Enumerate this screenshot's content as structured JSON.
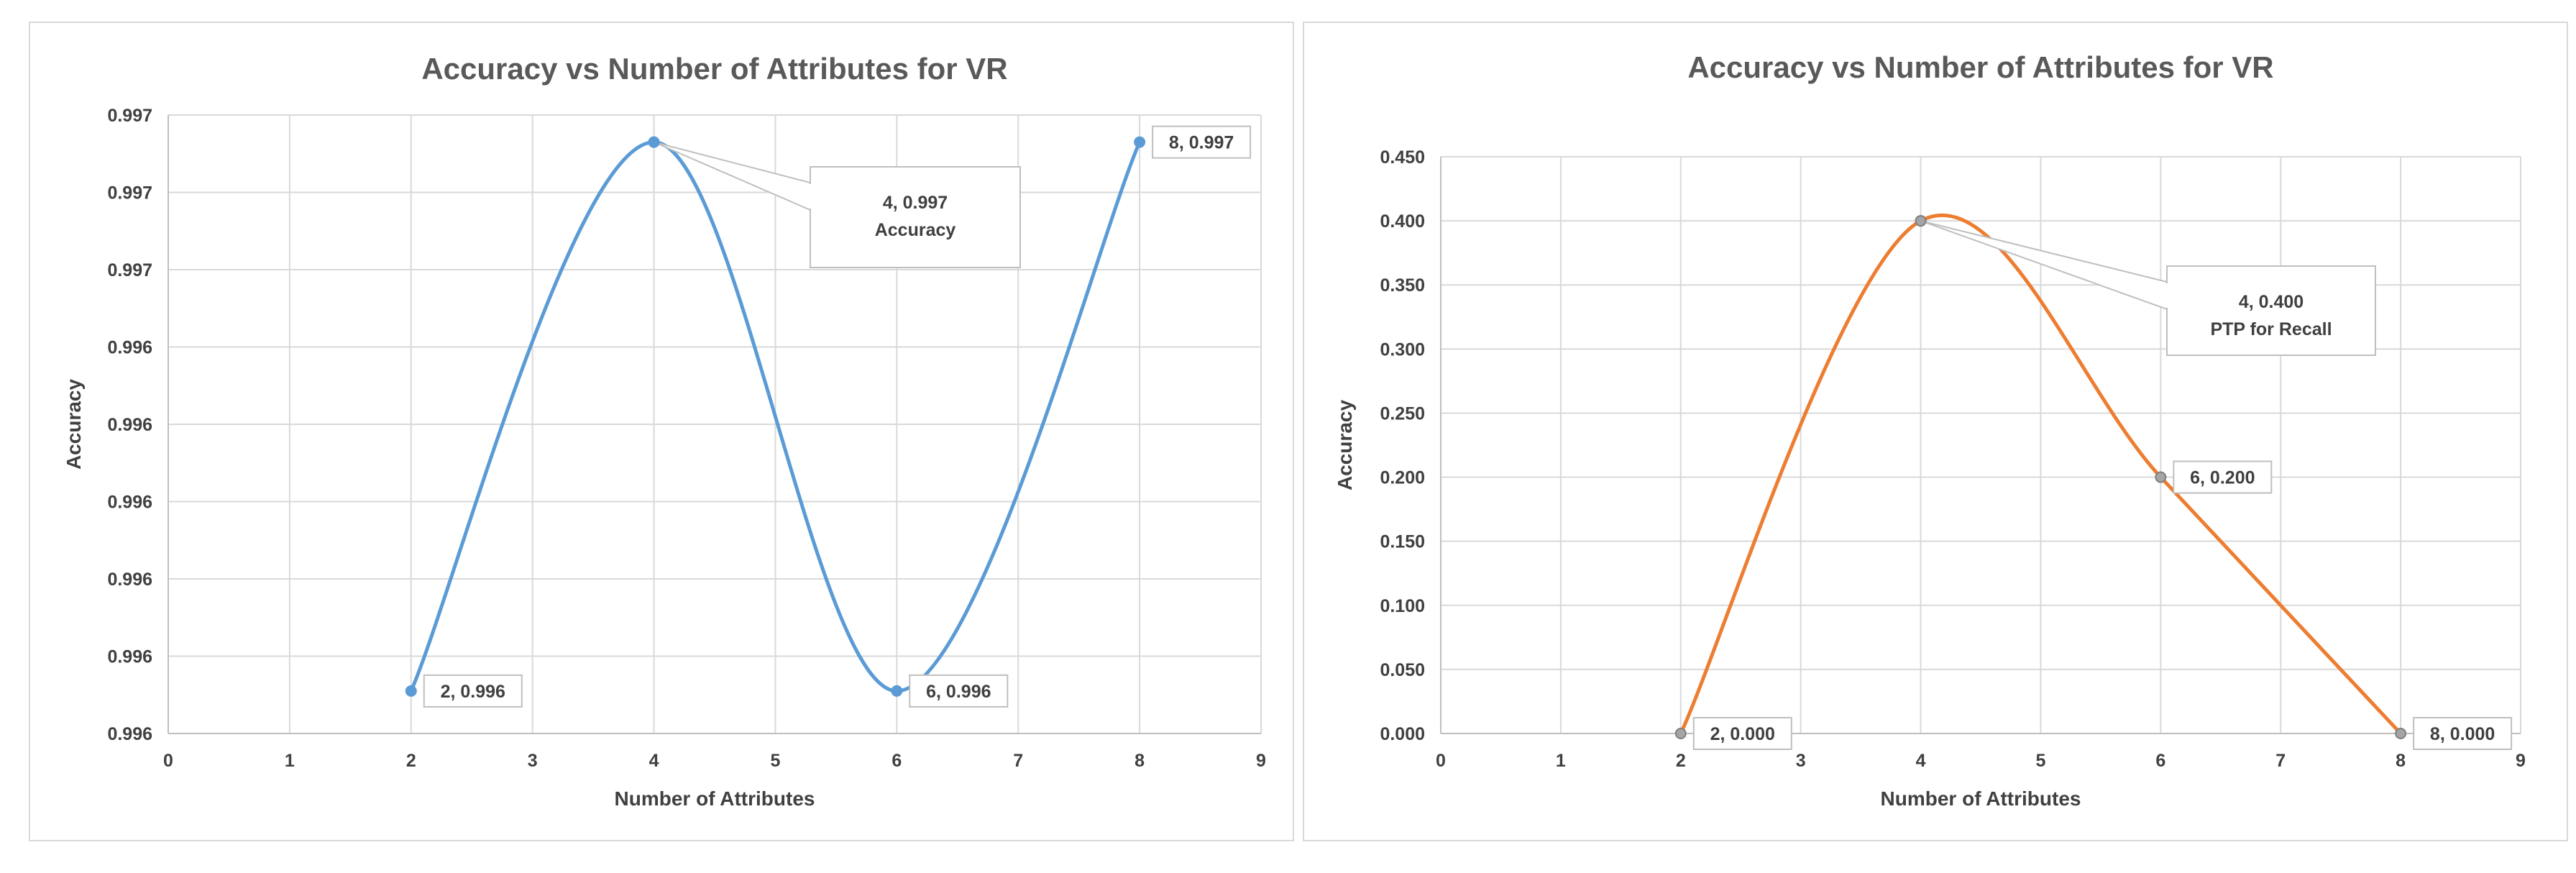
{
  "chart_data": [
    {
      "type": "line",
      "title": "Accuracy vs Number of Attributes for VR",
      "xlabel": "Number of Attributes",
      "ylabel": "Accuracy",
      "xlim": [
        0,
        9
      ],
      "x_ticks": [
        "0",
        "1",
        "2",
        "3",
        "4",
        "5",
        "6",
        "7",
        "8",
        "9"
      ],
      "ylim": [
        0.9956,
        0.9972
      ],
      "y_ticks": [
        "0.996",
        "0.996",
        "0.996",
        "0.996",
        "0.996",
        "0.996",
        "0.997",
        "0.997",
        "0.997"
      ],
      "grid": true,
      "smooth": true,
      "series": [
        {
          "name": "Accuracy",
          "color": "#5b9bd5",
          "x": [
            2,
            4,
            6,
            8
          ],
          "y": [
            0.99571,
            0.99713,
            0.99571,
            0.99713
          ],
          "labels": [
            "2, 0.996",
            "4, 0.997",
            "6, 0.996",
            "8, 0.997"
          ]
        }
      ],
      "callout": {
        "point": 1,
        "lines": [
          "4, 0.997",
          "Accuracy"
        ]
      }
    },
    {
      "type": "line",
      "title": "Accuracy vs Number of Attributes for VR",
      "xlabel": "Number of Attributes",
      "ylabel": "Accuracy",
      "xlim": [
        0,
        9
      ],
      "x_ticks": [
        "0",
        "1",
        "2",
        "3",
        "4",
        "5",
        "6",
        "7",
        "8",
        "9"
      ],
      "ylim": [
        0,
        0.45
      ],
      "y_ticks": [
        "0.000",
        "0.050",
        "0.100",
        "0.150",
        "0.200",
        "0.250",
        "0.300",
        "0.350",
        "0.400",
        "0.450"
      ],
      "grid": true,
      "smooth": true,
      "series": [
        {
          "name": "PTP for Recall",
          "color": "#ed7d31",
          "x": [
            2,
            4,
            6,
            8
          ],
          "y": [
            0.0,
            0.4,
            0.2,
            0.0
          ],
          "labels": [
            "2, 0.000",
            "4, 0.400",
            "6, 0.200",
            "8, 0.000"
          ]
        }
      ],
      "callout": {
        "point": 1,
        "lines": [
          "4, 0.400",
          "PTP for Recall"
        ]
      }
    }
  ]
}
